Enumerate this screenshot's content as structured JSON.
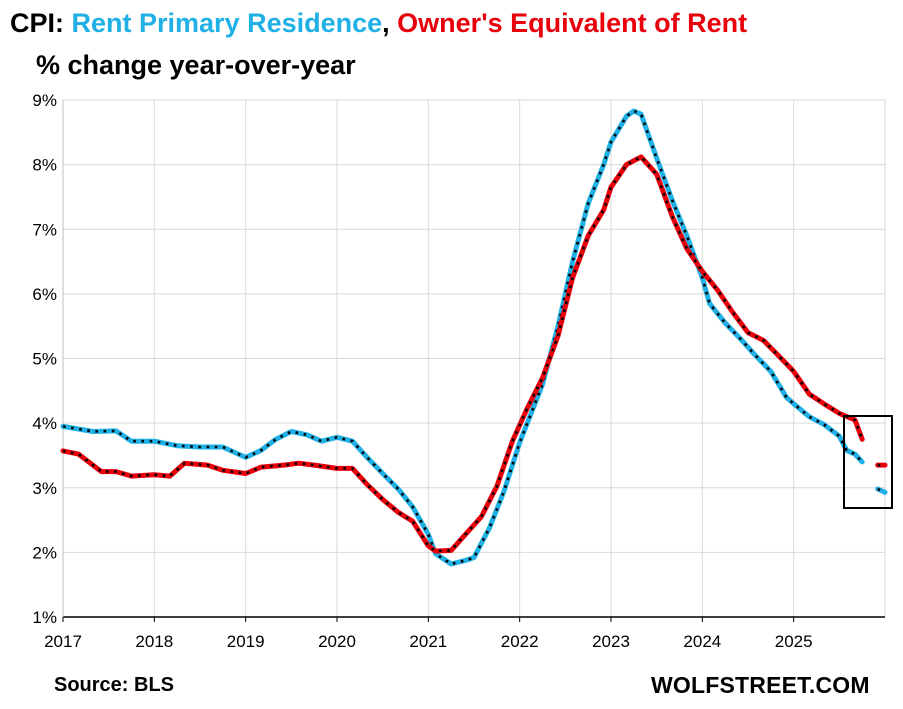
{
  "title": {
    "prefix": "CPI: ",
    "part1": "Rent Primary Residence",
    "separator": ", ",
    "part2": "Owner's Equivalent of Rent"
  },
  "subtitle": "% change year-over-year",
  "source": "Source: BLS",
  "brand": "WOLFSTREET.COM",
  "colors": {
    "rent": "#1fb0e6",
    "oer": "#e8000b",
    "dots": "#000000",
    "grid": "#d9d9d9"
  },
  "chart_data": {
    "type": "line",
    "title": "",
    "xlabel": "",
    "ylabel": "",
    "y_unit": "%",
    "ylim": [
      1,
      9
    ],
    "yticks": [
      "1%",
      "2%",
      "3%",
      "4%",
      "5%",
      "6%",
      "7%",
      "8%",
      "9%"
    ],
    "xlim": [
      2017.0,
      2026.0
    ],
    "xticks": [
      "2017",
      "2018",
      "2019",
      "2020",
      "2021",
      "2022",
      "2023",
      "2024",
      "2025"
    ],
    "grid": true,
    "annotation": "box around latest data points (late 2025)",
    "series": [
      {
        "name": "Rent Primary Residence",
        "color": "#1fb0e6",
        "segments": [
          [
            [
              2017.0,
              3.95
            ],
            [
              2017.33,
              3.87
            ],
            [
              2017.58,
              3.88
            ],
            [
              2017.75,
              3.72
            ],
            [
              2018.0,
              3.72
            ],
            [
              2018.25,
              3.65
            ],
            [
              2018.5,
              3.63
            ],
            [
              2018.75,
              3.63
            ],
            [
              2018.92,
              3.52
            ],
            [
              2019.0,
              3.47
            ],
            [
              2019.17,
              3.58
            ],
            [
              2019.33,
              3.75
            ],
            [
              2019.5,
              3.87
            ],
            [
              2019.67,
              3.82
            ],
            [
              2019.83,
              3.72
            ],
            [
              2020.0,
              3.78
            ],
            [
              2020.17,
              3.72
            ],
            [
              2020.33,
              3.47
            ],
            [
              2020.5,
              3.22
            ],
            [
              2020.67,
              2.98
            ],
            [
              2020.83,
              2.7
            ],
            [
              2021.0,
              2.28
            ],
            [
              2021.08,
              1.98
            ],
            [
              2021.25,
              1.82
            ],
            [
              2021.42,
              1.88
            ],
            [
              2021.5,
              1.92
            ],
            [
              2021.67,
              2.38
            ],
            [
              2021.83,
              2.95
            ],
            [
              2022.0,
              3.7
            ],
            [
              2022.25,
              4.6
            ],
            [
              2022.42,
              5.5
            ],
            [
              2022.58,
              6.5
            ],
            [
              2022.75,
              7.4
            ],
            [
              2022.92,
              8.0
            ],
            [
              2023.0,
              8.35
            ],
            [
              2023.17,
              8.75
            ],
            [
              2023.25,
              8.83
            ],
            [
              2023.33,
              8.78
            ],
            [
              2023.5,
              8.1
            ],
            [
              2023.67,
              7.45
            ],
            [
              2023.83,
              6.9
            ],
            [
              2024.0,
              6.25
            ],
            [
              2024.08,
              5.85
            ],
            [
              2024.25,
              5.55
            ],
            [
              2024.42,
              5.3
            ],
            [
              2024.58,
              5.05
            ],
            [
              2024.75,
              4.8
            ],
            [
              2024.92,
              4.4
            ],
            [
              2025.0,
              4.3
            ],
            [
              2025.17,
              4.1
            ],
            [
              2025.33,
              3.98
            ],
            [
              2025.5,
              3.8
            ],
            [
              2025.58,
              3.58
            ],
            [
              2025.67,
              3.52
            ],
            [
              2025.75,
              3.4
            ]
          ],
          [
            [
              2025.92,
              2.98
            ],
            [
              2026.0,
              2.93
            ]
          ]
        ]
      },
      {
        "name": "Owner's Equivalent of Rent",
        "color": "#e8000b",
        "segments": [
          [
            [
              2017.0,
              3.57
            ],
            [
              2017.17,
              3.52
            ],
            [
              2017.42,
              3.25
            ],
            [
              2017.58,
              3.25
            ],
            [
              2017.75,
              3.18
            ],
            [
              2018.0,
              3.2
            ],
            [
              2018.17,
              3.18
            ],
            [
              2018.33,
              3.38
            ],
            [
              2018.58,
              3.35
            ],
            [
              2018.75,
              3.27
            ],
            [
              2019.0,
              3.22
            ],
            [
              2019.17,
              3.32
            ],
            [
              2019.42,
              3.35
            ],
            [
              2019.58,
              3.38
            ],
            [
              2019.75,
              3.35
            ],
            [
              2020.0,
              3.3
            ],
            [
              2020.17,
              3.3
            ],
            [
              2020.33,
              3.05
            ],
            [
              2020.5,
              2.82
            ],
            [
              2020.67,
              2.62
            ],
            [
              2020.83,
              2.48
            ],
            [
              2021.0,
              2.1
            ],
            [
              2021.08,
              2.02
            ],
            [
              2021.25,
              2.03
            ],
            [
              2021.42,
              2.3
            ],
            [
              2021.58,
              2.55
            ],
            [
              2021.75,
              3.02
            ],
            [
              2021.92,
              3.72
            ],
            [
              2022.08,
              4.22
            ],
            [
              2022.25,
              4.7
            ],
            [
              2022.42,
              5.35
            ],
            [
              2022.58,
              6.25
            ],
            [
              2022.75,
              6.9
            ],
            [
              2022.92,
              7.3
            ],
            [
              2023.0,
              7.65
            ],
            [
              2023.17,
              8.0
            ],
            [
              2023.33,
              8.12
            ],
            [
              2023.5,
              7.85
            ],
            [
              2023.67,
              7.2
            ],
            [
              2023.83,
              6.7
            ],
            [
              2024.0,
              6.35
            ],
            [
              2024.17,
              6.05
            ],
            [
              2024.33,
              5.72
            ],
            [
              2024.5,
              5.4
            ],
            [
              2024.67,
              5.28
            ],
            [
              2024.83,
              5.05
            ],
            [
              2025.0,
              4.8
            ],
            [
              2025.17,
              4.45
            ],
            [
              2025.33,
              4.3
            ],
            [
              2025.5,
              4.15
            ],
            [
              2025.67,
              4.05
            ],
            [
              2025.75,
              3.75
            ]
          ],
          [
            [
              2025.92,
              3.35
            ],
            [
              2026.0,
              3.35
            ]
          ]
        ]
      }
    ]
  }
}
